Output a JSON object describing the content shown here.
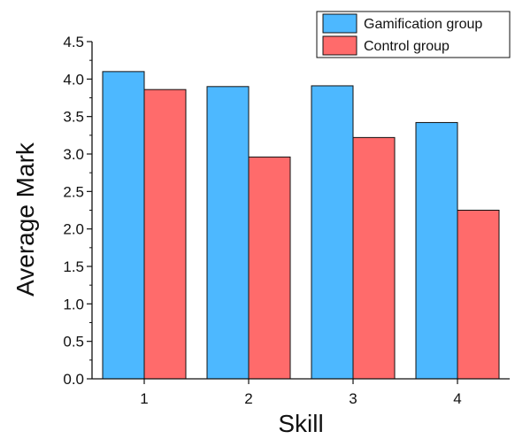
{
  "chart_data": {
    "type": "bar",
    "categories": [
      "1",
      "2",
      "3",
      "4"
    ],
    "series": [
      {
        "name": "Gamification group",
        "values": [
          4.1,
          3.9,
          3.91,
          3.42
        ],
        "color": "#4db8ff"
      },
      {
        "name": "Control group",
        "values": [
          3.86,
          2.96,
          3.22,
          2.25
        ],
        "color": "#ff6b6b"
      }
    ],
    "xlabel": "Skill",
    "ylabel": "Average Mark",
    "ylim": [
      0,
      4.5
    ],
    "yticks": [
      "0.0",
      "0.5",
      "1.0",
      "1.5",
      "2.0",
      "2.5",
      "3.0",
      "3.5",
      "4.0",
      "4.5"
    ],
    "grid": false,
    "legend_position": "top-right"
  }
}
